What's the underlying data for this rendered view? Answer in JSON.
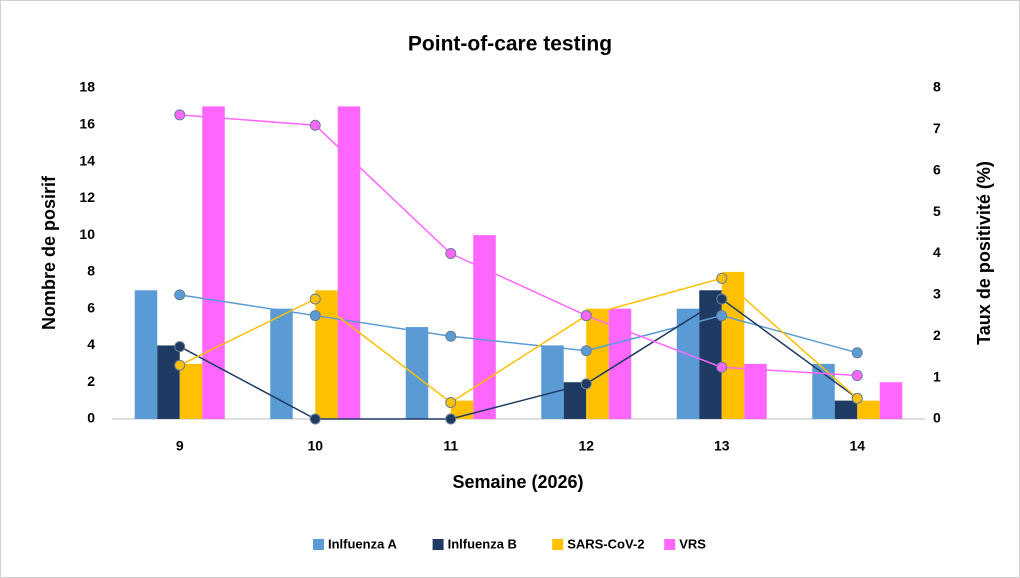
{
  "chart_data": {
    "type": "combo",
    "title": "Point-of-care testing",
    "x_label": "Semaine (2026)",
    "y_label": "Nombre de posirif",
    "y2_label": "Taux de positivité (%)",
    "categories": [
      "9",
      "10",
      "11",
      "12",
      "13",
      "14"
    ],
    "ylim": [
      0,
      18
    ],
    "yticks": [
      0,
      2,
      4,
      6,
      8,
      10,
      12,
      14,
      16,
      18
    ],
    "y2lim": [
      0,
      8
    ],
    "y2ticks": [
      0,
      1,
      2,
      3,
      4,
      5,
      6,
      7,
      8
    ],
    "legend": "bottom",
    "series": [
      {
        "name": "Inlfuenza A",
        "color": "#5b9bd5",
        "values": [
          7,
          6,
          5,
          4,
          6,
          3
        ]
      },
      {
        "name": "Inlfuenza B",
        "color": "#1f3b63",
        "values": [
          4,
          0,
          0,
          2,
          7,
          1
        ]
      },
      {
        "name": "SARS-CoV-2",
        "color": "#ffc000",
        "values": [
          3,
          7,
          1,
          6,
          8,
          1
        ]
      },
      {
        "name": "VRS",
        "color": "#ff66ff",
        "values": [
          17,
          17,
          10,
          6,
          3,
          2
        ]
      },
      {
        "color": "#5b9bd5",
        "axis": "y2",
        "values": [
          3.0,
          2.5,
          2.0,
          1.65,
          2.5,
          1.6
        ]
      },
      {
        "color": "#1f3b63",
        "axis": "y2",
        "values": [
          1.75,
          0,
          0,
          0.85,
          2.9,
          0.5
        ]
      },
      {
        "color": "#ffc000",
        "axis": "y2",
        "values": [
          1.3,
          2.9,
          0.4,
          2.5,
          3.4,
          0.5
        ]
      },
      {
        "color": "#ff66ff",
        "axis": "y2",
        "values": [
          7.35,
          7.1,
          4.0,
          2.5,
          1.25,
          1.05
        ]
      }
    ]
  }
}
